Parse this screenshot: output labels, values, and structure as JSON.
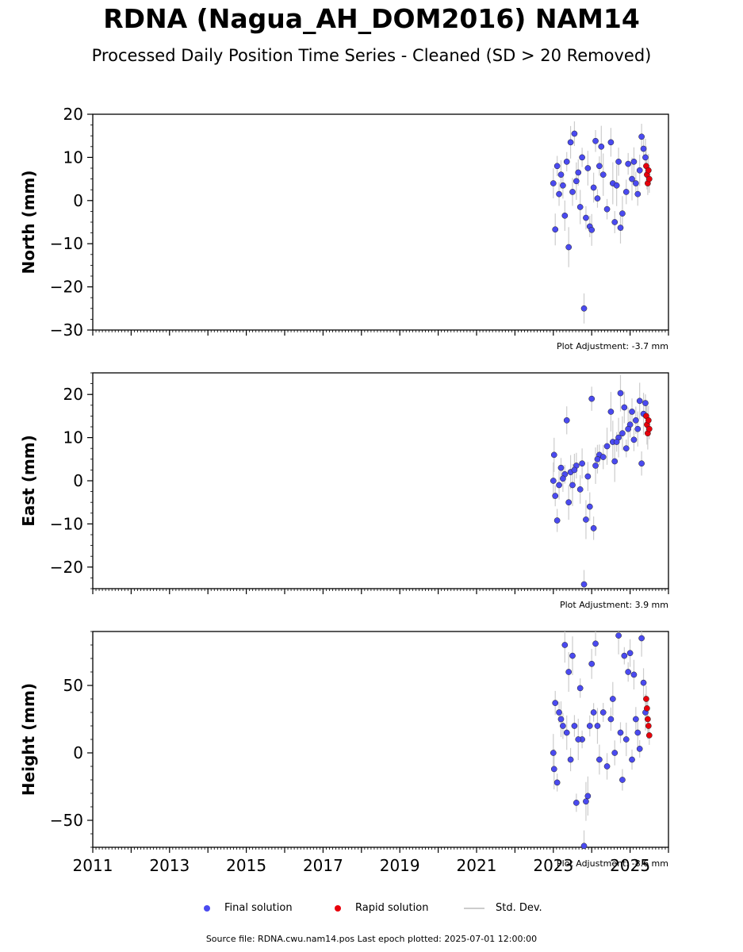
{
  "title": "RDNA (Nagua_AH_DOM2016) NAM14",
  "subtitle": "Processed Daily Position Time Series - Cleaned (SD > 20 Removed)",
  "legend": {
    "final": "Final solution",
    "rapid": "Rapid solution",
    "std": "Std. Dev."
  },
  "colors": {
    "final": "#4a4af0",
    "rapid": "#e8000b",
    "std": "#cccccc"
  },
  "source": "Source file: RDNA.cwu.nam14.pos  Last epoch plotted: 2025-07-01 12:00:00",
  "chart_data": [
    {
      "type": "scatter",
      "ylabel": "North (mm)",
      "xlim": [
        2011,
        2026
      ],
      "ylim": [
        -30,
        20
      ],
      "yticks": [
        -30,
        -20,
        -10,
        0,
        10,
        20
      ],
      "xticks": [
        "2011",
        "2013",
        "2015",
        "2017",
        "2019",
        "2021",
        "2023",
        "2025"
      ],
      "adjustment": "Plot Adjustment: -3.7 mm",
      "final_points": [
        [
          2023.0,
          4.0
        ],
        [
          2023.05,
          -6.7
        ],
        [
          2023.1,
          8.0
        ],
        [
          2023.15,
          1.5
        ],
        [
          2023.2,
          6.0
        ],
        [
          2023.3,
          -3.5
        ],
        [
          2023.35,
          9.0
        ],
        [
          2023.4,
          -10.8
        ],
        [
          2023.45,
          13.5
        ],
        [
          2023.5,
          2.0
        ],
        [
          2023.55,
          15.5
        ],
        [
          2023.6,
          4.5
        ],
        [
          2023.7,
          -1.5
        ],
        [
          2023.75,
          10.0
        ],
        [
          2023.8,
          -25.0
        ],
        [
          2023.85,
          -4.0
        ],
        [
          2023.9,
          7.5
        ],
        [
          2023.95,
          -6.0
        ],
        [
          2024.0,
          -6.8
        ],
        [
          2024.05,
          3.0
        ],
        [
          2024.1,
          13.8
        ],
        [
          2024.15,
          0.5
        ],
        [
          2024.25,
          12.5
        ],
        [
          2024.3,
          6.0
        ],
        [
          2024.4,
          -2.0
        ],
        [
          2024.5,
          13.5
        ],
        [
          2024.55,
          4.0
        ],
        [
          2024.6,
          -5.0
        ],
        [
          2024.7,
          9.0
        ],
        [
          2024.75,
          -6.3
        ],
        [
          2024.8,
          -3.0
        ],
        [
          2024.9,
          2.0
        ],
        [
          2024.95,
          8.5
        ],
        [
          2025.05,
          5.0
        ],
        [
          2025.1,
          9.0
        ],
        [
          2025.2,
          1.5
        ],
        [
          2025.25,
          7.0
        ],
        [
          2025.3,
          14.8
        ],
        [
          2025.35,
          12.0
        ],
        [
          2025.4,
          10.0
        ],
        [
          2023.25,
          3.5
        ],
        [
          2023.65,
          6.5
        ],
        [
          2024.2,
          8.0
        ],
        [
          2024.65,
          3.5
        ],
        [
          2025.15,
          4.0
        ]
      ],
      "rapid_points": [
        [
          2025.42,
          8.0
        ],
        [
          2025.44,
          6.0
        ],
        [
          2025.46,
          4.0
        ],
        [
          2025.48,
          7.0
        ],
        [
          2025.5,
          5.0
        ]
      ]
    },
    {
      "type": "scatter",
      "ylabel": "East (mm)",
      "xlim": [
        2011,
        2026
      ],
      "ylim": [
        -25,
        25
      ],
      "yticks": [
        -20,
        -10,
        0,
        10,
        20
      ],
      "xticks": [
        "2011",
        "2013",
        "2015",
        "2017",
        "2019",
        "2021",
        "2023",
        "2025"
      ],
      "adjustment": "Plot Adjustment: 3.9 mm",
      "final_points": [
        [
          2023.0,
          0.0
        ],
        [
          2023.02,
          6.0
        ],
        [
          2023.05,
          -3.5
        ],
        [
          2023.1,
          -9.2
        ],
        [
          2023.15,
          -1.0
        ],
        [
          2023.2,
          3.0
        ],
        [
          2023.3,
          1.5
        ],
        [
          2023.35,
          14.0
        ],
        [
          2023.4,
          -5.0
        ],
        [
          2023.45,
          2.0
        ],
        [
          2023.5,
          -1.0
        ],
        [
          2023.6,
          3.5
        ],
        [
          2023.7,
          -2.0
        ],
        [
          2023.75,
          4.0
        ],
        [
          2023.8,
          -24.0
        ],
        [
          2023.85,
          -9.0
        ],
        [
          2023.9,
          1.0
        ],
        [
          2023.95,
          -6.0
        ],
        [
          2024.0,
          19.0
        ],
        [
          2024.05,
          -11.0
        ],
        [
          2024.1,
          3.5
        ],
        [
          2024.2,
          6.0
        ],
        [
          2024.3,
          5.5
        ],
        [
          2024.4,
          8.0
        ],
        [
          2024.5,
          16.0
        ],
        [
          2024.55,
          9.0
        ],
        [
          2024.6,
          4.5
        ],
        [
          2024.7,
          10.0
        ],
        [
          2024.75,
          20.3
        ],
        [
          2024.8,
          11.0
        ],
        [
          2024.85,
          17.0
        ],
        [
          2024.9,
          7.5
        ],
        [
          2025.0,
          13.0
        ],
        [
          2025.05,
          16.0
        ],
        [
          2025.1,
          9.5
        ],
        [
          2025.15,
          14.0
        ],
        [
          2025.2,
          12.0
        ],
        [
          2025.25,
          18.5
        ],
        [
          2025.3,
          4.0
        ],
        [
          2025.35,
          15.5
        ],
        [
          2025.4,
          18.0
        ],
        [
          2023.25,
          0.5
        ],
        [
          2023.55,
          2.5
        ],
        [
          2024.15,
          5.0
        ],
        [
          2024.65,
          9.0
        ],
        [
          2024.95,
          12.0
        ]
      ],
      "rapid_points": [
        [
          2025.42,
          15.0
        ],
        [
          2025.44,
          13.0
        ],
        [
          2025.46,
          11.0
        ],
        [
          2025.48,
          14.0
        ],
        [
          2025.5,
          12.0
        ]
      ]
    },
    {
      "type": "scatter",
      "ylabel": "Height (mm)",
      "xlim": [
        2011,
        2026
      ],
      "ylim": [
        -70,
        90
      ],
      "yticks": [
        -50,
        0,
        50
      ],
      "xticks": [
        "2011",
        "2013",
        "2015",
        "2017",
        "2019",
        "2021",
        "2023",
        "2025"
      ],
      "adjustment": "Plot Adjustment: -8.6 mm",
      "final_points": [
        [
          2023.0,
          0.0
        ],
        [
          2023.02,
          -12.0
        ],
        [
          2023.05,
          37.0
        ],
        [
          2023.1,
          -22.0
        ],
        [
          2023.15,
          30.0
        ],
        [
          2023.2,
          25.0
        ],
        [
          2023.3,
          80.0
        ],
        [
          2023.35,
          15.0
        ],
        [
          2023.4,
          60.0
        ],
        [
          2023.45,
          -5.0
        ],
        [
          2023.5,
          72.0
        ],
        [
          2023.55,
          20.0
        ],
        [
          2023.6,
          -37.0
        ],
        [
          2023.7,
          48.0
        ],
        [
          2023.75,
          10.0
        ],
        [
          2023.8,
          -69.0
        ],
        [
          2023.85,
          -36.0
        ],
        [
          2023.9,
          -32.0
        ],
        [
          2023.95,
          20.0
        ],
        [
          2024.0,
          66.0
        ],
        [
          2024.05,
          30.0
        ],
        [
          2024.1,
          81.0
        ],
        [
          2024.2,
          -5.0
        ],
        [
          2024.3,
          30.0
        ],
        [
          2024.4,
          -10.0
        ],
        [
          2024.5,
          25.0
        ],
        [
          2024.6,
          0.0
        ],
        [
          2024.7,
          87.0
        ],
        [
          2024.75,
          15.0
        ],
        [
          2024.8,
          -20.0
        ],
        [
          2024.85,
          72.0
        ],
        [
          2024.9,
          10.0
        ],
        [
          2024.95,
          60.0
        ],
        [
          2025.0,
          74.0
        ],
        [
          2025.05,
          -5.0
        ],
        [
          2025.1,
          58.0
        ],
        [
          2025.2,
          15.0
        ],
        [
          2025.25,
          3.0
        ],
        [
          2025.3,
          85.0
        ],
        [
          2025.35,
          52.0
        ],
        [
          2025.4,
          30.0
        ],
        [
          2023.25,
          20.0
        ],
        [
          2023.65,
          10.0
        ],
        [
          2024.15,
          20.0
        ],
        [
          2024.55,
          40.0
        ],
        [
          2025.15,
          25.0
        ]
      ],
      "rapid_points": [
        [
          2025.42,
          40.0
        ],
        [
          2025.44,
          33.0
        ],
        [
          2025.46,
          25.0
        ],
        [
          2025.48,
          20.0
        ],
        [
          2025.5,
          13.0
        ]
      ]
    }
  ]
}
